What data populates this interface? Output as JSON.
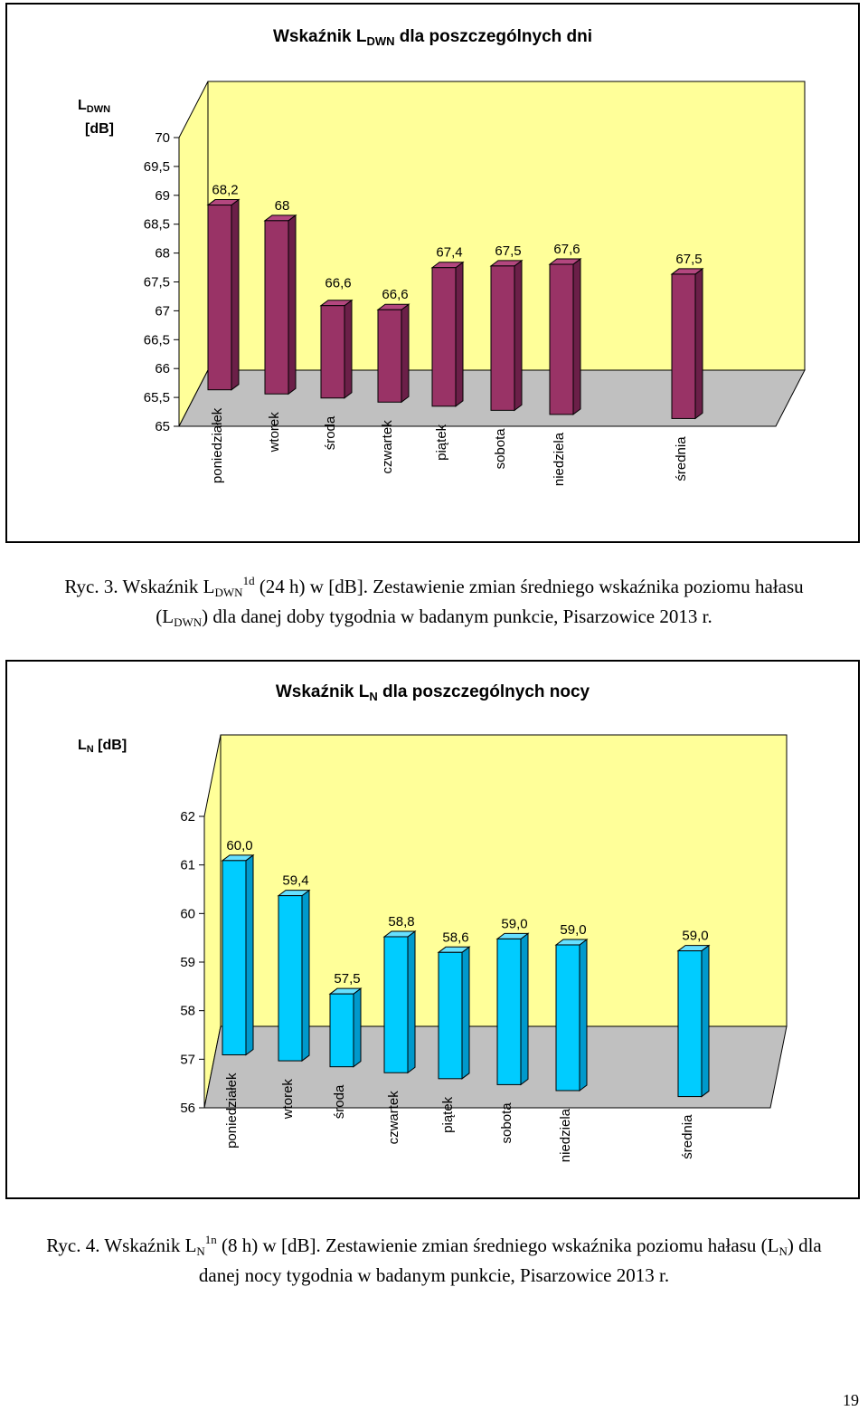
{
  "chart_data": [
    {
      "type": "bar",
      "title": {
        "prefix": "Wskaźnik L",
        "sub": "DWN",
        "suffix": " dla poszczególnych dni"
      },
      "ylabel": {
        "line1_main": "L",
        "line1_sub": "DWN",
        "line2": "[dB]"
      },
      "categories": [
        "poniedziałek",
        "wtorek",
        "środa",
        "czwartek",
        "piątek",
        "sobota",
        "niedziela",
        "średnia"
      ],
      "values": [
        68.2,
        68.0,
        66.6,
        66.6,
        67.4,
        67.5,
        67.6,
        67.5
      ],
      "data_labels": [
        "68,2",
        "68",
        "66,6",
        "66,6",
        "67,4",
        "67,5",
        "67,6",
        "67,5"
      ],
      "ylim": [
        65,
        70
      ],
      "yticks": [
        "65",
        "65,5",
        "66",
        "66,5",
        "67",
        "67,5",
        "68",
        "68,5",
        "69",
        "69,5",
        "70"
      ],
      "grid": false,
      "legend": "none",
      "colors": {
        "bar_front": "#993366",
        "bar_side": "#6b1f48",
        "bar_top": "#b3477f",
        "wall": "#ffff99"
      }
    },
    {
      "type": "bar",
      "title": {
        "prefix": "Wskaźnik L",
        "sub": "N",
        "suffix": " dla poszczególnych nocy"
      },
      "ylabel": {
        "line1_main": "L",
        "line1_sub": "N",
        "line1_rest": " [dB]"
      },
      "categories": [
        "poniedziałek",
        "wtorek",
        "środa",
        "czwartek",
        "piątek",
        "sobota",
        "niedziela",
        "średnia"
      ],
      "values": [
        60.0,
        59.4,
        57.5,
        58.8,
        58.6,
        59.0,
        59.0,
        59.0
      ],
      "data_labels": [
        "60,0",
        "59,4",
        "57,5",
        "58,8",
        "58,6",
        "59,0",
        "59,0",
        "59,0"
      ],
      "ylim": [
        56,
        62
      ],
      "yticks": [
        "56",
        "57",
        "58",
        "59",
        "60",
        "61",
        "62"
      ],
      "grid": false,
      "legend": "none",
      "colors": {
        "bar_front": "#00ccff",
        "bar_side": "#0099cc",
        "bar_top": "#66e0ff",
        "wall": "#ffff99"
      }
    }
  ],
  "captions": [
    {
      "p1": "Ryc. 3. Wskaźnik L",
      "p1_sub": "DWN",
      "p1_sup": "1d",
      "p1_rest": " (24 h) w [dB]. Zestawienie zmian średniego wskaźnika poziomu hałasu",
      "p2_pre": "(L",
      "p2_sub": "DWN",
      "p2_rest": ") dla danej doby tygodnia w badanym punkcie, Pisarzowice 2013 r."
    },
    {
      "p1": "Ryc. 4. Wskaźnik L",
      "p1_sub": "N",
      "p1_sup": "1n",
      "p1_rest": " (8 h) w [dB]. Zestawienie zmian średniego wskaźnika poziomu hałasu (L",
      "p1_sub2": "N",
      "p1_rest2": ") dla",
      "p2": "danej nocy tygodnia w badanym punkcie, Pisarzowice 2013 r."
    }
  ],
  "page_number": "19"
}
